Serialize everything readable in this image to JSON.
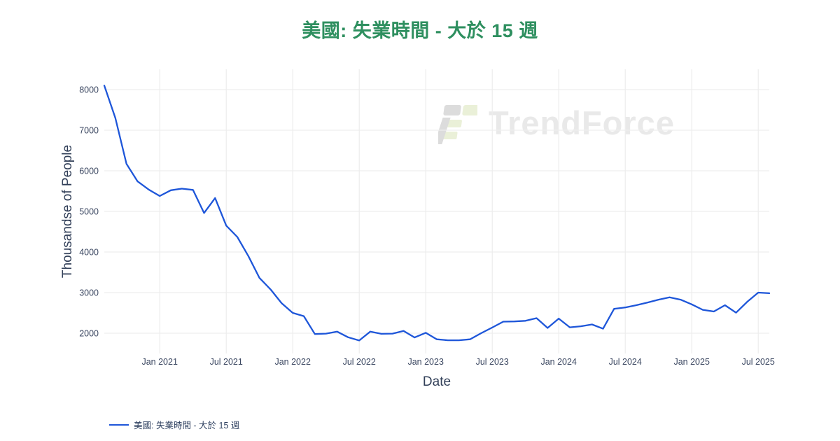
{
  "page": {
    "title": "美國: 失業時間 - 大於 15 週"
  },
  "watermark": {
    "text": "TrendForce"
  },
  "legend": {
    "label": "美國: 失業時間 - 大於 15 週"
  },
  "chart_data": {
    "type": "line",
    "title": "美國: 失業時間 - 大於 15 週",
    "xlabel": "Date",
    "ylabel": "Thousandse of People",
    "legend": [
      "美國: 失業時間 - 大於 15 週"
    ],
    "legend_position": "bottom-left",
    "grid": true,
    "title_color": "#2e8f5f",
    "line_color": "#1e56d9",
    "grid_color": "#ededed",
    "tick_color": "#3a4660",
    "ylim": [
      1500,
      8500
    ],
    "y_ticks": [
      2000,
      3000,
      4000,
      5000,
      6000,
      7000,
      8000
    ],
    "x_ticks": [
      {
        "index": 5,
        "label": "Jan 2021"
      },
      {
        "index": 11,
        "label": "Jul 2021"
      },
      {
        "index": 17,
        "label": "Jan 2022"
      },
      {
        "index": 23,
        "label": "Jul 2022"
      },
      {
        "index": 29,
        "label": "Jan 2023"
      },
      {
        "index": 35,
        "label": "Jul 2023"
      },
      {
        "index": 41,
        "label": "Jan 2024"
      },
      {
        "index": 47,
        "label": "Jul 2024"
      },
      {
        "index": 53,
        "label": "Jan 2025"
      },
      {
        "index": 59,
        "label": "Jul 2025"
      }
    ],
    "x": [
      "2020-08",
      "2020-09",
      "2020-10",
      "2020-11",
      "2020-12",
      "2021-01",
      "2021-02",
      "2021-03",
      "2021-04",
      "2021-05",
      "2021-06",
      "2021-07",
      "2021-08",
      "2021-09",
      "2021-10",
      "2021-11",
      "2021-12",
      "2022-01",
      "2022-02",
      "2022-03",
      "2022-04",
      "2022-05",
      "2022-06",
      "2022-07",
      "2022-08",
      "2022-09",
      "2022-10",
      "2022-11",
      "2022-12",
      "2023-01",
      "2023-02",
      "2023-03",
      "2023-04",
      "2023-05",
      "2023-06",
      "2023-07",
      "2023-08",
      "2023-09",
      "2023-10",
      "2023-11",
      "2023-12",
      "2024-01",
      "2024-02",
      "2024-03",
      "2024-04",
      "2024-05",
      "2024-06",
      "2024-07",
      "2024-08",
      "2024-09",
      "2024-10",
      "2024-11",
      "2024-12",
      "2025-01",
      "2025-02",
      "2025-03",
      "2025-04",
      "2025-05",
      "2025-06",
      "2025-07",
      "2025-08"
    ],
    "values": [
      8100,
      7300,
      6170,
      5740,
      5540,
      5380,
      5520,
      5560,
      5530,
      4960,
      5330,
      4650,
      4370,
      3900,
      3360,
      3080,
      2740,
      2500,
      2420,
      1980,
      1990,
      2040,
      1900,
      1820,
      2040,
      1985,
      1990,
      2055,
      1895,
      2010,
      1850,
      1825,
      1825,
      1850,
      2000,
      2140,
      2285,
      2290,
      2305,
      2370,
      2130,
      2360,
      2145,
      2170,
      2215,
      2110,
      2600,
      2635,
      2690,
      2755,
      2825,
      2885,
      2825,
      2710,
      2575,
      2535,
      2690,
      2505,
      2770,
      3000,
      2985
    ]
  }
}
